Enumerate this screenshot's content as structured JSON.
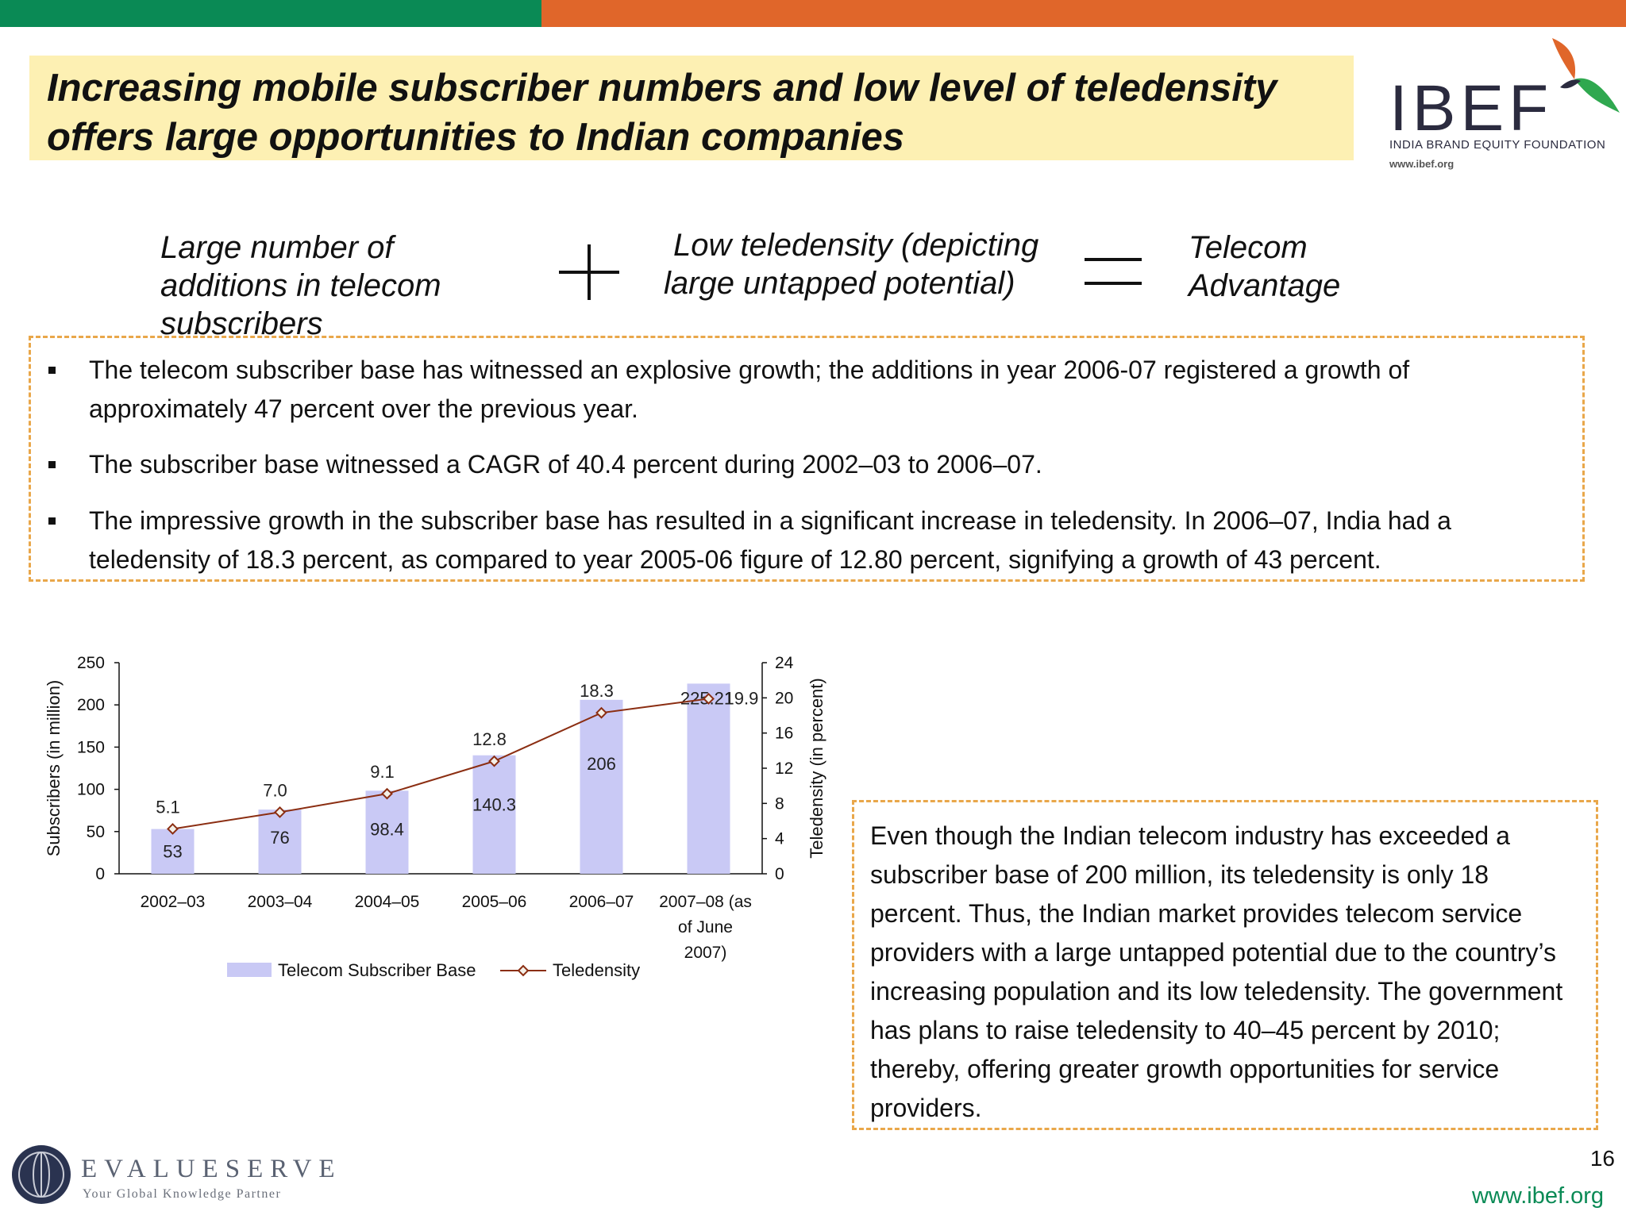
{
  "header": {
    "title_line1": "Increasing mobile subscriber numbers and low level of teledensity",
    "title_line2": "offers large opportunities to Indian companies"
  },
  "logo": {
    "name": "IBEF",
    "foundation": "INDIA BRAND EQUITY FOUNDATION",
    "url": "www.ibef.org"
  },
  "equation": {
    "item1_line1": "Large number of",
    "item1_line2": "additions in telecom",
    "item1_line3": "subscribers",
    "item2_line1": "Low teledensity (depicting",
    "item2_line2": "large untapped potential)",
    "item3_line1": "Telecom",
    "item3_line2": "Advantage"
  },
  "bullets": [
    {
      "line1": "The telecom subscriber base has witnessed an explosive growth; the additions in year 2006-07  registered a growth of",
      "line2": "approximately 47 percent over the previous year."
    },
    {
      "line1": "The subscriber base witnessed a CAGR of 40.4 percent during 2002–03 to 2006–07.",
      "line2": ""
    },
    {
      "line1": "The impressive growth in the subscriber base has resulted in a significant increase in teledensity. In 2006–07, India had a",
      "line2": "teledensity of 18.3 percent, as compared to year 2005-06  figure of 12.80 percent, signifying a growth of 43 percent."
    }
  ],
  "chart_data": {
    "type": "bar",
    "categories": [
      "2002–03",
      "2003–04",
      "2004–05",
      "2005–06",
      "2006–07",
      "2007–08 (as of June 2007)"
    ],
    "category_lines": [
      [
        "2002–03"
      ],
      [
        "2003–04"
      ],
      [
        "2004–05"
      ],
      [
        "2005–06"
      ],
      [
        "2006–07"
      ],
      [
        "2007–08 (as",
        "of June",
        "2007)"
      ]
    ],
    "series": [
      {
        "name": "Telecom Subscriber Base",
        "type": "bar",
        "axis": "left",
        "values": [
          53,
          76,
          98.4,
          140.3,
          206,
          225.21
        ],
        "labels": [
          "53",
          "76",
          "98.4",
          "140.3",
          "206",
          "225.21"
        ],
        "color": "#c9c9f5"
      },
      {
        "name": "Teledensity",
        "type": "line",
        "axis": "right",
        "values": [
          5.1,
          7.0,
          9.1,
          12.8,
          18.3,
          19.9
        ],
        "labels": [
          "5.1",
          "7.0",
          "9.1",
          "12.8",
          "18.3",
          "19.9"
        ],
        "color": "#8b2e12"
      }
    ],
    "ylabel": "Subscribers (in million)",
    "y2label": "Teledensity (in percent)",
    "ylim": [
      0,
      250
    ],
    "yticks": [
      0,
      50,
      100,
      150,
      200,
      250
    ],
    "y2lim": [
      0,
      24
    ],
    "y2ticks": [
      0,
      4,
      8,
      12,
      16,
      20,
      24
    ],
    "legend_position": "bottom"
  },
  "note": {
    "text": "Even though the Indian telecom industry has exceeded a subscriber base of 200 million, its teledensity is only 18 percent. Thus, the Indian market provides telecom service providers with a large untapped potential due to the country’s increasing population and its low teledensity. The government has plans to raise teledensity to 40–45 percent by 2010; thereby, offering greater growth opportunities for service providers."
  },
  "footer": {
    "company": "EVALUESERVE",
    "tagline": "Your Global Knowledge Partner",
    "page_number": "16",
    "url": "www.ibef.org"
  },
  "colors": {
    "green": "#0a8a55",
    "orange": "#e0662a",
    "title_bg": "#fdf0b3",
    "dashed_border": "#e9a74a"
  }
}
